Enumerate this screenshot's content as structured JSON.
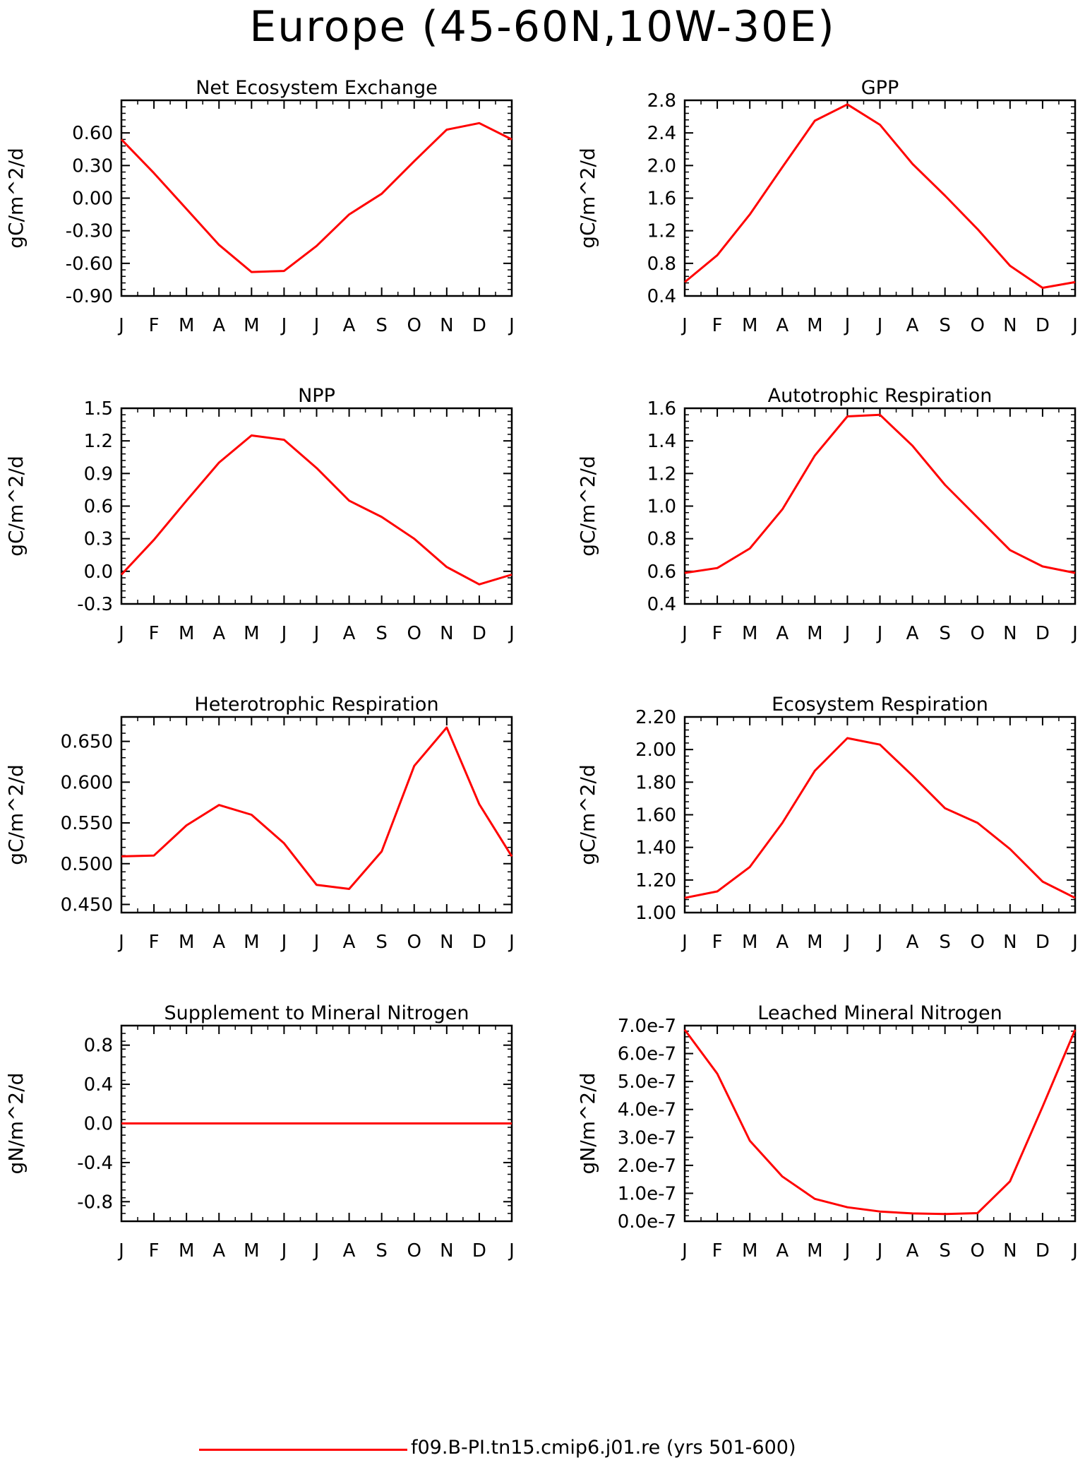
{
  "title": "Europe (45-60N,10W-30E)",
  "legend": {
    "label": "f09.B-PI.tn15.cmip6.j01.re (yrs 501-600)",
    "color": "#ff0000"
  },
  "chart_data": [
    {
      "type": "line",
      "title": "Net Ecosystem Exchange",
      "ylabel": "gC/m^2/d",
      "x": [
        "J",
        "F",
        "M",
        "A",
        "M",
        "J",
        "J",
        "A",
        "S",
        "O",
        "N",
        "D",
        "J"
      ],
      "ylim": [
        -0.9,
        0.9
      ],
      "yticks": [
        "-0.90",
        "-0.60",
        "-0.30",
        "0.00",
        "0.30",
        "0.60"
      ],
      "ytick_values": [
        -0.9,
        -0.6,
        -0.3,
        0.0,
        0.3,
        0.6
      ],
      "series": [
        {
          "values": [
            0.54,
            0.23,
            -0.1,
            -0.43,
            -0.68,
            -0.67,
            -0.44,
            -0.15,
            0.04,
            0.34,
            0.63,
            0.69,
            0.54
          ]
        }
      ]
    },
    {
      "type": "line",
      "title": "GPP",
      "ylabel": "gC/m^2/d",
      "x": [
        "J",
        "F",
        "M",
        "A",
        "M",
        "J",
        "J",
        "A",
        "S",
        "O",
        "N",
        "D",
        "J"
      ],
      "ylim": [
        0.4,
        2.8
      ],
      "yticks": [
        "0.4",
        "0.8",
        "1.2",
        "1.6",
        "2.0",
        "2.4",
        "2.8"
      ],
      "ytick_values": [
        0.4,
        0.8,
        1.2,
        1.6,
        2.0,
        2.4,
        2.8
      ],
      "series": [
        {
          "values": [
            0.57,
            0.9,
            1.4,
            1.98,
            2.55,
            2.75,
            2.5,
            2.02,
            1.63,
            1.22,
            0.77,
            0.5,
            0.57
          ]
        }
      ]
    },
    {
      "type": "line",
      "title": "NPP",
      "ylabel": "gC/m^2/d",
      "x": [
        "J",
        "F",
        "M",
        "A",
        "M",
        "J",
        "J",
        "A",
        "S",
        "O",
        "N",
        "D",
        "J"
      ],
      "ylim": [
        -0.3,
        1.5
      ],
      "yticks": [
        "-0.3",
        "0.0",
        "0.3",
        "0.6",
        "0.9",
        "1.2",
        "1.5"
      ],
      "ytick_values": [
        -0.3,
        0.0,
        0.3,
        0.6,
        0.9,
        1.2,
        1.5
      ],
      "series": [
        {
          "values": [
            -0.03,
            0.29,
            0.65,
            1.0,
            1.25,
            1.21,
            0.95,
            0.65,
            0.5,
            0.3,
            0.04,
            -0.12,
            -0.03
          ]
        }
      ]
    },
    {
      "type": "line",
      "title": "Autotrophic Respiration",
      "ylabel": "gC/m^2/d",
      "x": [
        "J",
        "F",
        "M",
        "A",
        "M",
        "J",
        "J",
        "A",
        "S",
        "O",
        "N",
        "D",
        "J"
      ],
      "ylim": [
        0.4,
        1.6
      ],
      "yticks": [
        "0.4",
        "0.6",
        "0.8",
        "1.0",
        "1.2",
        "1.4",
        "1.6"
      ],
      "ytick_values": [
        0.4,
        0.6,
        0.8,
        1.0,
        1.2,
        1.4,
        1.6
      ],
      "series": [
        {
          "values": [
            0.59,
            0.62,
            0.74,
            0.98,
            1.31,
            1.55,
            1.56,
            1.37,
            1.13,
            0.93,
            0.73,
            0.63,
            0.59
          ]
        }
      ]
    },
    {
      "type": "line",
      "title": "Heterotrophic Respiration",
      "ylabel": "gC/m^2/d",
      "x": [
        "J",
        "F",
        "M",
        "A",
        "M",
        "J",
        "J",
        "A",
        "S",
        "O",
        "N",
        "D",
        "J"
      ],
      "ylim": [
        0.44,
        0.68
      ],
      "yticks": [
        "0.450",
        "0.500",
        "0.550",
        "0.600",
        "0.650"
      ],
      "ytick_values": [
        0.45,
        0.5,
        0.55,
        0.6,
        0.65
      ],
      "series": [
        {
          "values": [
            0.509,
            0.51,
            0.547,
            0.572,
            0.56,
            0.525,
            0.474,
            0.469,
            0.515,
            0.62,
            0.667,
            0.573,
            0.509
          ]
        }
      ]
    },
    {
      "type": "line",
      "title": "Ecosystem Respiration",
      "ylabel": "gC/m^2/d",
      "x": [
        "J",
        "F",
        "M",
        "A",
        "M",
        "J",
        "J",
        "A",
        "S",
        "O",
        "N",
        "D",
        "J"
      ],
      "ylim": [
        1.0,
        2.2
      ],
      "yticks": [
        "1.00",
        "1.20",
        "1.40",
        "1.60",
        "1.80",
        "2.00",
        "2.20"
      ],
      "ytick_values": [
        1.0,
        1.2,
        1.4,
        1.6,
        1.8,
        2.0,
        2.2
      ],
      "series": [
        {
          "values": [
            1.09,
            1.13,
            1.28,
            1.55,
            1.87,
            2.07,
            2.03,
            1.84,
            1.64,
            1.55,
            1.39,
            1.19,
            1.09
          ]
        }
      ]
    },
    {
      "type": "line",
      "title": "Supplement to Mineral Nitrogen",
      "ylabel": "gN/m^2/d",
      "x": [
        "J",
        "F",
        "M",
        "A",
        "M",
        "J",
        "J",
        "A",
        "S",
        "O",
        "N",
        "D",
        "J"
      ],
      "ylim": [
        -1.0,
        1.0
      ],
      "yticks": [
        "-0.8",
        "-0.4",
        "0.0",
        "0.4",
        "0.8"
      ],
      "ytick_values": [
        -0.8,
        -0.4,
        0.0,
        0.4,
        0.8
      ],
      "series": [
        {
          "values": [
            0,
            0,
            0,
            0,
            0,
            0,
            0,
            0,
            0,
            0,
            0,
            0,
            0
          ]
        }
      ]
    },
    {
      "type": "line",
      "title": "Leached Mineral Nitrogen",
      "ylabel": "gN/m^2/d",
      "x": [
        "J",
        "F",
        "M",
        "A",
        "M",
        "J",
        "J",
        "A",
        "S",
        "O",
        "N",
        "D",
        "J"
      ],
      "ylim": [
        0.0,
        7e-07
      ],
      "yticks": [
        "0.0e-7",
        "1.0e-7",
        "2.0e-7",
        "3.0e-7",
        "4.0e-7",
        "5.0e-7",
        "6.0e-7",
        "7.0e-7"
      ],
      "ytick_values": [
        0,
        1e-07,
        2e-07,
        3e-07,
        4e-07,
        5e-07,
        6e-07,
        7e-07
      ],
      "series": [
        {
          "values": [
            6.85e-07,
            5.28e-07,
            2.88e-07,
            1.6e-07,
            8e-08,
            5e-08,
            3.5e-08,
            2.8e-08,
            2.6e-08,
            2.9e-08,
            1.43e-07,
            4.1e-07,
            6.85e-07
          ]
        }
      ]
    }
  ]
}
